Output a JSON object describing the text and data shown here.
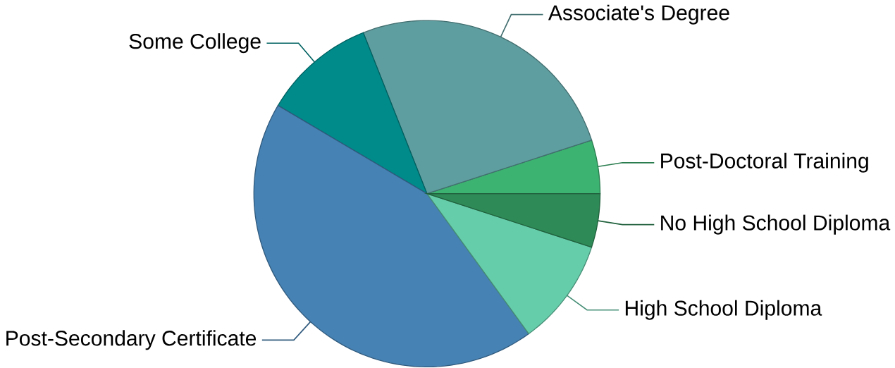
{
  "chart_data": {
    "type": "pie",
    "categories": [
      "Post-Doctoral Training",
      "Associate's Degree",
      "Some College",
      "Post-Secondary Certificate",
      "High School Diploma",
      "No High School Diploma"
    ],
    "values": [
      5,
      26,
      10.5,
      43.5,
      10,
      5
    ],
    "colors": [
      "#3cb371",
      "#5f9ea0",
      "#008b8b",
      "#4682b4",
      "#66cdaa",
      "#2e8b57"
    ],
    "legend": false
  }
}
